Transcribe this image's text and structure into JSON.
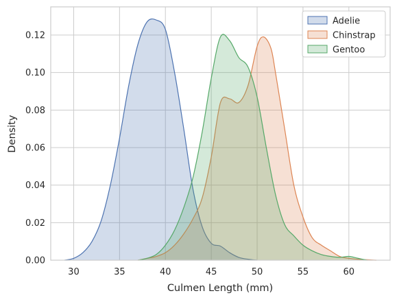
{
  "chart_data": {
    "type": "area",
    "title": "",
    "xlabel": "Culmen Length (mm)",
    "ylabel": "Density",
    "xlim": [
      27.5,
      64.5
    ],
    "ylim": [
      0,
      0.135
    ],
    "x_ticks": [
      30,
      35,
      40,
      45,
      50,
      55,
      60
    ],
    "y_ticks": [
      0.0,
      0.02,
      0.04,
      0.06,
      0.08,
      0.1,
      0.12
    ],
    "y_tick_labels": [
      "0.00",
      "0.02",
      "0.04",
      "0.06",
      "0.08",
      "0.10",
      "0.12"
    ],
    "grid": true,
    "legend_position": "top-right",
    "series": [
      {
        "name": "Adelie",
        "color": "#4c72b0",
        "points": [
          [
            29,
            0
          ],
          [
            30,
            0.001
          ],
          [
            31,
            0.004
          ],
          [
            32,
            0.01
          ],
          [
            33,
            0.021
          ],
          [
            34,
            0.04
          ],
          [
            35,
            0.065
          ],
          [
            36,
            0.093
          ],
          [
            37,
            0.115
          ],
          [
            38,
            0.127
          ],
          [
            39,
            0.128
          ],
          [
            40,
            0.123
          ],
          [
            41,
            0.1
          ],
          [
            42,
            0.07
          ],
          [
            43,
            0.038
          ],
          [
            44,
            0.018
          ],
          [
            45,
            0.009
          ],
          [
            46,
            0.0075
          ],
          [
            47,
            0.004
          ],
          [
            48,
            0.0015
          ],
          [
            49,
            0.0005
          ],
          [
            50,
            0
          ]
        ]
      },
      {
        "name": "Chinstrap",
        "color": "#dd8452",
        "points": [
          [
            37,
            0
          ],
          [
            38,
            0.001
          ],
          [
            39,
            0.002
          ],
          [
            40,
            0.004
          ],
          [
            41,
            0.008
          ],
          [
            42,
            0.014
          ],
          [
            43,
            0.022
          ],
          [
            44,
            0.033
          ],
          [
            45,
            0.055
          ],
          [
            46,
            0.084
          ],
          [
            47,
            0.086
          ],
          [
            48,
            0.084
          ],
          [
            49,
            0.093
          ],
          [
            50,
            0.114
          ],
          [
            50.7,
            0.119
          ],
          [
            51.5,
            0.113
          ],
          [
            52,
            0.1
          ],
          [
            53,
            0.07
          ],
          [
            54,
            0.04
          ],
          [
            55,
            0.023
          ],
          [
            56,
            0.012
          ],
          [
            57,
            0.008
          ],
          [
            58,
            0.005
          ],
          [
            59,
            0.002
          ],
          [
            60,
            0.001
          ],
          [
            61,
            0.0005
          ],
          [
            63,
            0
          ]
        ]
      },
      {
        "name": "Gentoo",
        "color": "#55a868",
        "points": [
          [
            37,
            0
          ],
          [
            38,
            0.001
          ],
          [
            39,
            0.003
          ],
          [
            40,
            0.008
          ],
          [
            41,
            0.016
          ],
          [
            42,
            0.028
          ],
          [
            43,
            0.044
          ],
          [
            44,
            0.068
          ],
          [
            45,
            0.097
          ],
          [
            46,
            0.119
          ],
          [
            47,
            0.117
          ],
          [
            48,
            0.108
          ],
          [
            49,
            0.103
          ],
          [
            50,
            0.087
          ],
          [
            51,
            0.06
          ],
          [
            52,
            0.035
          ],
          [
            53,
            0.019
          ],
          [
            54,
            0.013
          ],
          [
            55,
            0.008
          ],
          [
            56,
            0.005
          ],
          [
            57,
            0.003
          ],
          [
            58,
            0.002
          ],
          [
            59,
            0.0015
          ],
          [
            60,
            0.002
          ],
          [
            61,
            0.001
          ],
          [
            62,
            0
          ]
        ]
      }
    ]
  }
}
